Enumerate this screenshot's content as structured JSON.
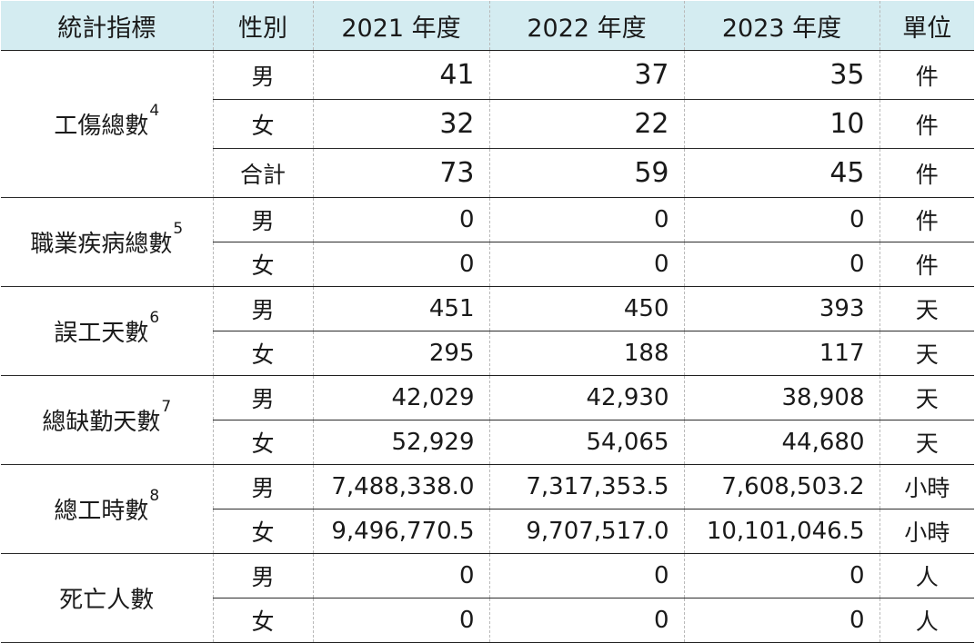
{
  "headers": [
    "統計指標",
    "性別",
    "2021 年度",
    "2022 年度",
    "2023 年度",
    "單位"
  ],
  "groups": [
    {
      "metric": "工傷總數",
      "note": "4",
      "rows": [
        {
          "sex": "男",
          "y2021": "41",
          "y2022": "37",
          "y2023": "35",
          "unit": "件"
        },
        {
          "sex": "女",
          "y2021": "32",
          "y2022": "22",
          "y2023": "10",
          "unit": "件"
        },
        {
          "sex": "合計",
          "y2021": "73",
          "y2022": "59",
          "y2023": "45",
          "unit": "件"
        }
      ]
    },
    {
      "metric": "職業疾病總數",
      "note": "5",
      "rows": [
        {
          "sex": "男",
          "y2021": "0",
          "y2022": "0",
          "y2023": "0",
          "unit": "件"
        },
        {
          "sex": "女",
          "y2021": "0",
          "y2022": "0",
          "y2023": "0",
          "unit": "件"
        }
      ]
    },
    {
      "metric": "誤工天數",
      "note": "6",
      "rows": [
        {
          "sex": "男",
          "y2021": "451",
          "y2022": "450",
          "y2023": "393",
          "unit": "天"
        },
        {
          "sex": "女",
          "y2021": "295",
          "y2022": "188",
          "y2023": "117",
          "unit": "天"
        }
      ]
    },
    {
      "metric": "總缺勤天數",
      "note": "7",
      "rows": [
        {
          "sex": "男",
          "y2021": "42,029",
          "y2022": "42,930",
          "y2023": "38,908",
          "unit": "天"
        },
        {
          "sex": "女",
          "y2021": "52,929",
          "y2022": "54,065",
          "y2023": "44,680",
          "unit": "天"
        }
      ]
    },
    {
      "metric": "總工時數",
      "note": "8",
      "rows": [
        {
          "sex": "男",
          "y2021": "7,488,338.0",
          "y2022": "7,317,353.5",
          "y2023": "7,608,503.2",
          "unit": "小時"
        },
        {
          "sex": "女",
          "y2021": "9,496,770.5",
          "y2022": "9,707,517.0",
          "y2023": "10,101,046.5",
          "unit": "小時"
        }
      ]
    },
    {
      "metric": "死亡人數",
      "note": "",
      "rows": [
        {
          "sex": "男",
          "y2021": "0",
          "y2022": "0",
          "y2023": "0",
          "unit": "人"
        },
        {
          "sex": "女",
          "y2021": "0",
          "y2022": "0",
          "y2023": "0",
          "unit": "人"
        }
      ]
    }
  ]
}
